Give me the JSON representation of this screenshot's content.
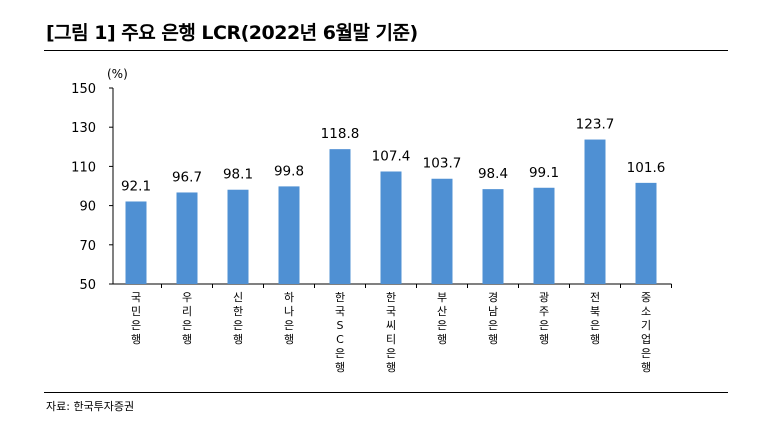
{
  "title": "[그림 1] 주요 은행 LCR(2022년 6월말 기준)",
  "source": "자료: 한국투자증권",
  "colors": {
    "bar": "#4f90d3",
    "axis": "#000000",
    "text": "#000000"
  },
  "chart_data": {
    "type": "bar",
    "title": "[그림 1] 주요 은행 LCR(2022년 6월말 기준)",
    "ylabel": "(%)",
    "xlabel": "",
    "ylim": [
      50,
      150
    ],
    "yticks": [
      50,
      70,
      90,
      110,
      130,
      150
    ],
    "grid": false,
    "legend": "none",
    "categories": [
      "국민은행",
      "우리은행",
      "신한은행",
      "하나은행",
      "한국SC은행",
      "한국씨티은행",
      "부산은행",
      "경남은행",
      "광주은행",
      "전북은행",
      "중소기업은행"
    ],
    "values": [
      92.1,
      96.7,
      98.1,
      99.8,
      118.8,
      107.4,
      103.7,
      98.4,
      99.1,
      123.7,
      101.6
    ],
    "data_labels": [
      "92.1",
      "96.7",
      "98.1",
      "99.8",
      "118.8",
      "107.4",
      "103.7",
      "98.4",
      "99.1",
      "123.7",
      "101.6"
    ]
  }
}
